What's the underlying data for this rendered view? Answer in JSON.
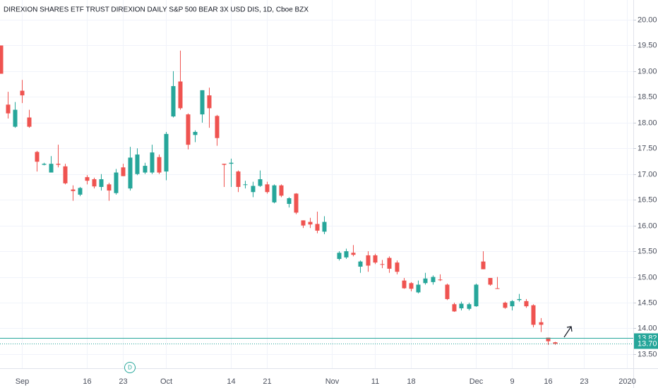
{
  "chart_data": {
    "type": "candlestick",
    "title": "DIREXION SHARES ETF TRUST DIREXION DAILY S&P 500 BEAR 3X USD DIS, 1D, Cboe BZX",
    "categories": [
      null,
      null,
      null,
      "Sep",
      null,
      null,
      null,
      null,
      null,
      null,
      null,
      null,
      "16",
      null,
      null,
      null,
      null,
      "23",
      null,
      null,
      null,
      null,
      null,
      "Oct",
      null,
      null,
      null,
      null,
      null,
      null,
      null,
      null,
      "14",
      null,
      null,
      null,
      null,
      "21",
      null,
      null,
      null,
      null,
      null,
      null,
      null,
      null,
      "Nov",
      null,
      null,
      null,
      null,
      null,
      "11",
      null,
      null,
      null,
      null,
      "18",
      null,
      null,
      null,
      null,
      null,
      null,
      null,
      null,
      "Dec",
      null,
      null,
      null,
      null,
      "9",
      null,
      null,
      null,
      null,
      "16",
      null,
      null,
      null,
      null,
      "23",
      null,
      null,
      null,
      null,
      null,
      "2020"
    ],
    "open": [
      19.5,
      18.35,
      17.92,
      18.62,
      18.1,
      17.43,
      17.18,
      17.03,
      17.2,
      17.15,
      16.7,
      16.6,
      16.94,
      16.9,
      16.75,
      16.8,
      16.63,
      17.13,
      16.72,
      17.0,
      17.03,
      17.03,
      17.33,
      17.05,
      18.12,
      18.8,
      18.16,
      17.76,
      18.16,
      18.53,
      18.13,
      17.2,
      17.2,
      17.05,
      16.8,
      16.65,
      16.77,
      16.8,
      16.45,
      16.78,
      16.42,
      16.62,
      16.1,
      16.07,
      16.03,
      15.88,
      null,
      15.35,
      15.38,
      15.47,
      15.2,
      15.42,
      15.42,
      15.25,
      15.37,
      15.28,
      14.93,
      14.88,
      14.7,
      14.88,
      14.9,
      14.95,
      14.85,
      14.47,
      14.39,
      14.38,
      14.43,
      15.3,
      14.98,
      14.78,
      14.5,
      14.43,
      14.55,
      14.53,
      14.45,
      14.12,
      13.82,
      13.73,
      null,
      null,
      null,
      null,
      null,
      null,
      null,
      null,
      null,
      null
    ],
    "high": [
      19.5,
      18.6,
      18.4,
      18.83,
      18.25,
      17.45,
      17.22,
      17.35,
      17.57,
      17.2,
      16.78,
      16.75,
      16.98,
      16.93,
      17.0,
      16.83,
      17.1,
      17.2,
      17.53,
      17.5,
      17.22,
      17.57,
      17.38,
      17.82,
      19.0,
      19.4,
      18.18,
      17.85,
      18.63,
      18.68,
      18.15,
      17.2,
      17.3,
      17.07,
      16.87,
      16.85,
      17.07,
      16.85,
      16.8,
      16.8,
      16.55,
      16.63,
      16.1,
      16.15,
      16.27,
      16.18,
      null,
      15.5,
      15.55,
      15.62,
      15.32,
      15.5,
      15.45,
      15.33,
      15.4,
      15.32,
      14.98,
      14.9,
      14.93,
      15.08,
      15.03,
      15.05,
      14.87,
      14.5,
      14.52,
      14.5,
      14.87,
      15.5,
      14.98,
      15.0,
      14.52,
      14.55,
      14.67,
      14.57,
      14.47,
      14.2,
      13.82,
      13.74,
      null,
      null,
      null,
      null,
      null,
      null,
      null,
      null,
      null,
      null
    ],
    "low": [
      18.95,
      18.08,
      17.9,
      18.38,
      17.9,
      17.05,
      17.17,
      17.03,
      17.13,
      16.8,
      16.48,
      16.57,
      16.8,
      16.72,
      16.68,
      16.48,
      16.6,
      16.96,
      16.68,
      16.98,
      17.0,
      17.0,
      17.0,
      16.88,
      18.1,
      18.25,
      17.48,
      17.62,
      18.0,
      17.9,
      17.55,
      16.75,
      16.75,
      16.65,
      16.72,
      16.55,
      16.75,
      16.62,
      16.43,
      16.55,
      16.35,
      16.22,
      15.95,
      15.95,
      15.85,
      15.83,
      null,
      15.32,
      15.35,
      15.4,
      15.08,
      15.1,
      15.25,
      15.17,
      15.08,
      15.05,
      14.77,
      14.72,
      14.68,
      14.85,
      14.85,
      14.92,
      14.55,
      14.32,
      14.35,
      14.35,
      14.42,
      15.15,
      14.83,
      14.77,
      14.38,
      14.35,
      14.52,
      14.4,
      14.02,
      13.93,
      13.68,
      13.68,
      null,
      null,
      null,
      null,
      null,
      null,
      null,
      null,
      null,
      null
    ],
    "close": [
      18.95,
      18.18,
      18.25,
      18.53,
      17.92,
      17.24,
      17.2,
      17.2,
      17.18,
      16.82,
      16.67,
      16.73,
      16.87,
      16.76,
      16.9,
      16.68,
      17.03,
      16.96,
      17.32,
      17.38,
      17.16,
      17.42,
      17.03,
      17.78,
      18.71,
      18.28,
      17.57,
      17.82,
      18.63,
      18.28,
      17.7,
      17.18,
      17.22,
      16.75,
      16.8,
      16.77,
      16.9,
      16.65,
      16.78,
      16.58,
      16.53,
      16.25,
      16.0,
      16.02,
      15.9,
      16.07,
      null,
      15.47,
      15.5,
      15.43,
      15.3,
      15.22,
      15.28,
      15.24,
      15.16,
      15.1,
      14.78,
      14.77,
      14.85,
      14.97,
      15.0,
      14.94,
      14.57,
      14.33,
      14.48,
      14.47,
      14.85,
      15.15,
      14.85,
      14.77,
      14.4,
      14.53,
      14.57,
      14.43,
      14.07,
      14.07,
      13.75,
      13.7,
      null,
      null,
      null,
      null,
      null,
      null,
      null,
      null,
      null,
      null
    ],
    "up_color": "#26a69a",
    "down_color": "#ef5350",
    "ylim": [
      13.225,
      20.384
    ],
    "yticks": [
      {
        "value": 13.5,
        "label": "13.50"
      },
      {
        "value": 14,
        "label": "14.00"
      },
      {
        "value": 14.5,
        "label": "14.50"
      },
      {
        "value": 15,
        "label": "15.00"
      },
      {
        "value": 15.5,
        "label": "15.50"
      },
      {
        "value": 16,
        "label": "16.00"
      },
      {
        "value": 16.5,
        "label": "16.50"
      },
      {
        "value": 17,
        "label": "17.00"
      },
      {
        "value": 17.5,
        "label": "17.50"
      },
      {
        "value": 18,
        "label": "18.00"
      },
      {
        "value": 18.5,
        "label": "18.50"
      },
      {
        "value": 19,
        "label": "19.00"
      },
      {
        "value": 19.5,
        "label": "19.50"
      },
      {
        "value": 20,
        "label": "20.00"
      }
    ],
    "price_lines": [
      13.82,
      {
        "value": 13.7,
        "label": "13.70"
      }
    ],
    "grid": true,
    "dividend_marker": "D"
  }
}
